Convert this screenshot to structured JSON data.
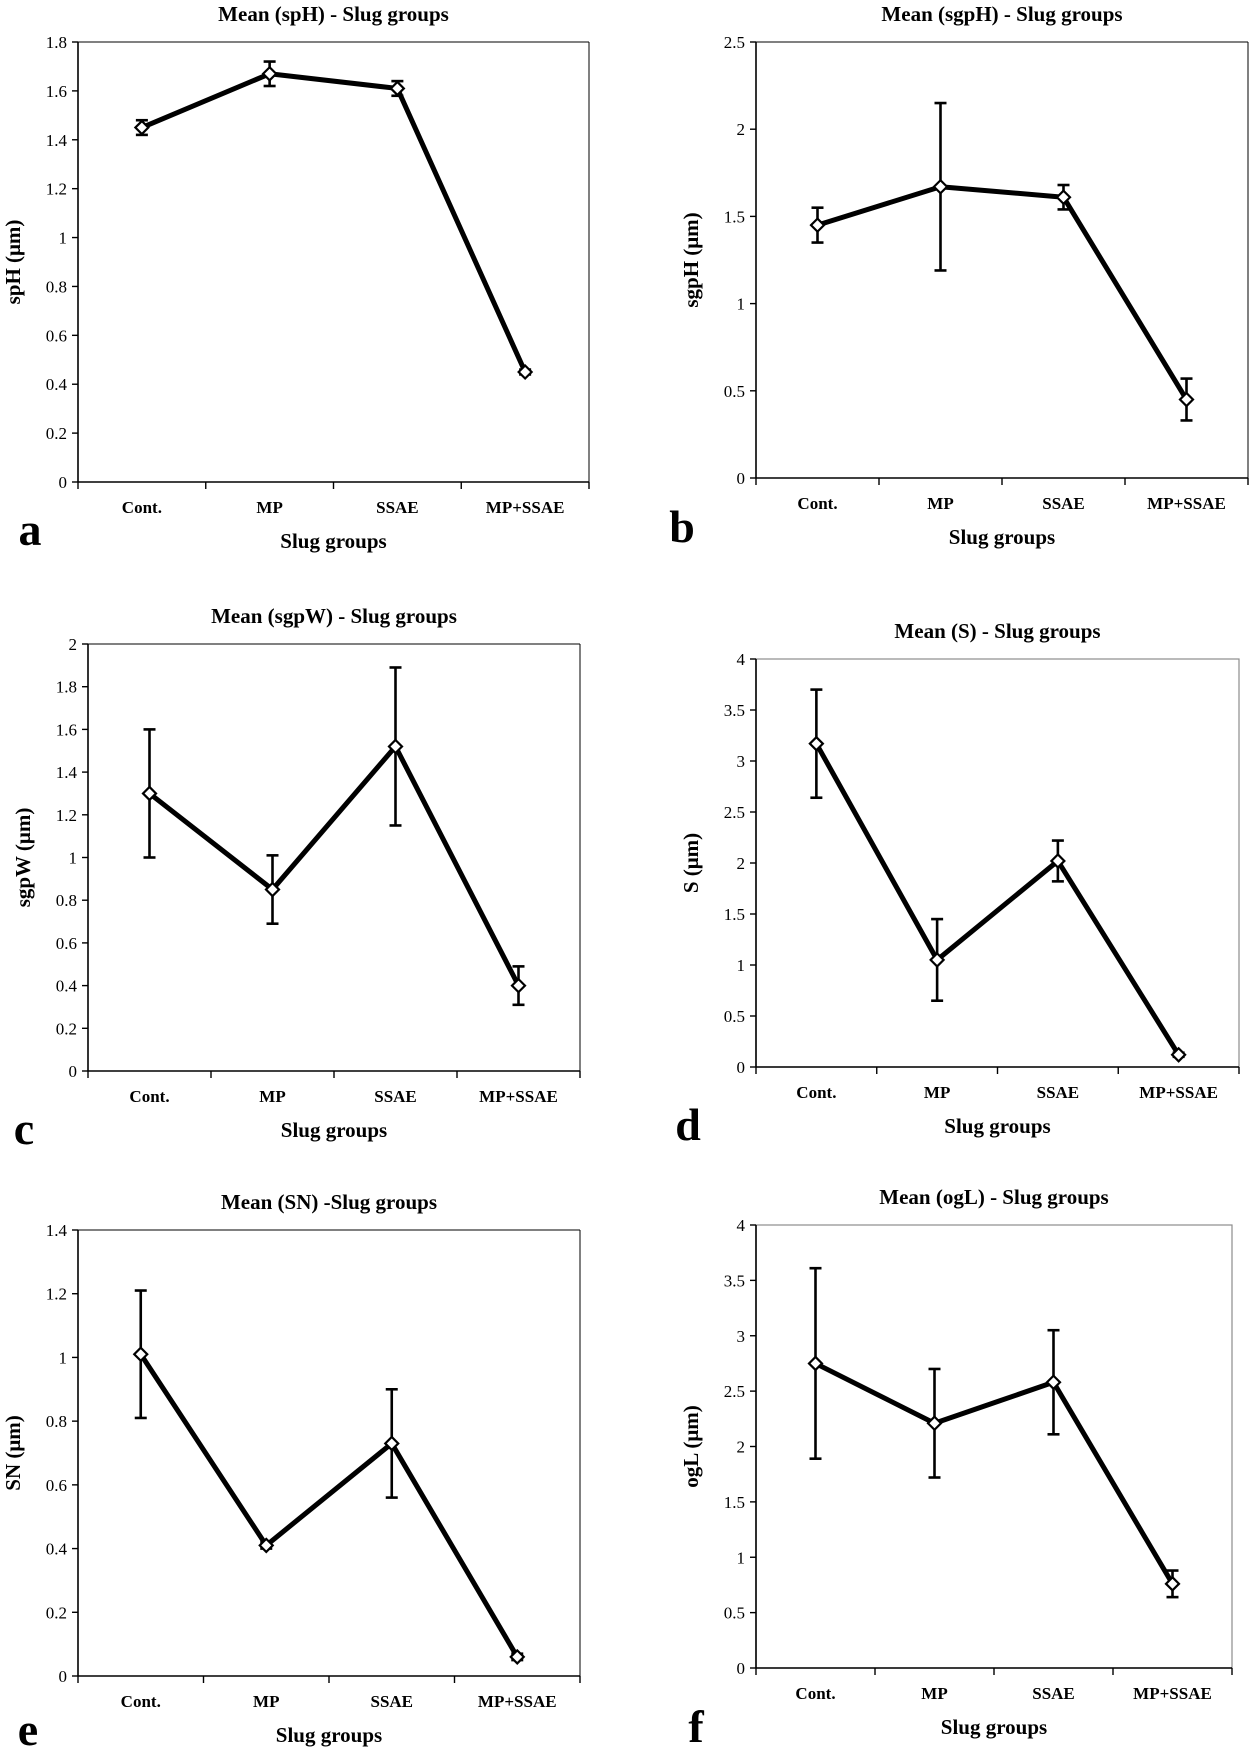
{
  "figure": {
    "colors": {
      "line": "#000000",
      "marker_fill": "#ffffff",
      "axis": "#000000",
      "frame": "#8c8c8c",
      "background": "#ffffff"
    }
  },
  "chart_data": [
    {
      "panel_letter": "a",
      "type": "line",
      "title": "Mean (spH) - Slug groups",
      "xlabel": "Slug groups",
      "ylabel": "spH (μm)",
      "categories": [
        "Cont.",
        "MP",
        "SSAE",
        "MP+SSAE"
      ],
      "ylim": [
        0,
        1.8
      ],
      "yticks": [
        0,
        0.2,
        0.4,
        0.6,
        0.8,
        1,
        1.2,
        1.4,
        1.6,
        1.8
      ],
      "series": [
        {
          "values": [
            1.45,
            1.67,
            1.61,
            0.45
          ],
          "error": [
            0.03,
            0.05,
            0.03,
            0.01
          ]
        }
      ],
      "grid": false,
      "legend": "none"
    },
    {
      "panel_letter": "b",
      "type": "line",
      "title": "Mean (sgpH) - Slug groups",
      "xlabel": "Slug groups",
      "ylabel": "sgpH (μm)",
      "categories": [
        "Cont.",
        "MP",
        "SSAE",
        "MP+SSAE"
      ],
      "ylim": [
        0,
        2.5
      ],
      "yticks": [
        0,
        0.5,
        1,
        1.5,
        2,
        2.5
      ],
      "series": [
        {
          "values": [
            1.45,
            1.67,
            1.61,
            0.45
          ],
          "error": [
            0.1,
            0.48,
            0.07,
            0.12
          ]
        }
      ],
      "grid": false,
      "legend": "none"
    },
    {
      "panel_letter": "c",
      "type": "line",
      "title": "Mean (sgpW) - Slug groups",
      "xlabel": "Slug groups",
      "ylabel": "sgpW (μm)",
      "categories": [
        "Cont.",
        "MP",
        "SSAE",
        "MP+SSAE"
      ],
      "ylim": [
        0,
        2
      ],
      "yticks": [
        0,
        0.2,
        0.4,
        0.6,
        0.8,
        1,
        1.2,
        1.4,
        1.6,
        1.8,
        2
      ],
      "series": [
        {
          "values": [
            1.3,
            0.85,
            1.52,
            0.4
          ],
          "error": [
            0.3,
            0.16,
            0.37,
            0.09
          ]
        }
      ],
      "grid": false,
      "legend": "none"
    },
    {
      "panel_letter": "d",
      "type": "line",
      "title": "Mean (S) - Slug groups",
      "xlabel": "Slug groups",
      "ylabel": "S (μm)",
      "categories": [
        "Cont.",
        "MP",
        "SSAE",
        "MP+SSAE"
      ],
      "ylim": [
        0,
        4
      ],
      "yticks": [
        0,
        0.5,
        1,
        1.5,
        2,
        2.5,
        3,
        3.5,
        4
      ],
      "series": [
        {
          "values": [
            3.17,
            1.05,
            2.02,
            0.12
          ],
          "error": [
            0.53,
            0.4,
            0.2,
            0.02
          ]
        }
      ],
      "grid": false,
      "legend": "none"
    },
    {
      "panel_letter": "e",
      "type": "line",
      "title": "Mean (SN) -Slug groups",
      "xlabel": "Slug groups",
      "ylabel": "SN (μm)",
      "categories": [
        "Cont.",
        "MP",
        "SSAE",
        "MP+SSAE"
      ],
      "ylim": [
        0,
        1.4
      ],
      "yticks": [
        0,
        0.2,
        0.4,
        0.6,
        0.8,
        1,
        1.2,
        1.4
      ],
      "series": [
        {
          "values": [
            1.01,
            0.41,
            0.73,
            0.06
          ],
          "error": [
            0.2,
            0.01,
            0.17,
            0.01
          ]
        }
      ],
      "grid": false,
      "legend": "none"
    },
    {
      "panel_letter": "f",
      "type": "line",
      "title": "Mean (ogL) - Slug groups",
      "xlabel": "Slug groups",
      "ylabel": "ogL (μm)",
      "categories": [
        "Cont.",
        "MP",
        "SSAE",
        "MP+SSAE"
      ],
      "ylim": [
        0,
        4
      ],
      "yticks": [
        0,
        0.5,
        1,
        1.5,
        2,
        2.5,
        3,
        3.5,
        4
      ],
      "series": [
        {
          "values": [
            2.75,
            2.21,
            2.58,
            0.76
          ],
          "error": [
            0.86,
            0.49,
            0.47,
            0.12
          ]
        }
      ],
      "grid": false,
      "legend": "none"
    }
  ]
}
